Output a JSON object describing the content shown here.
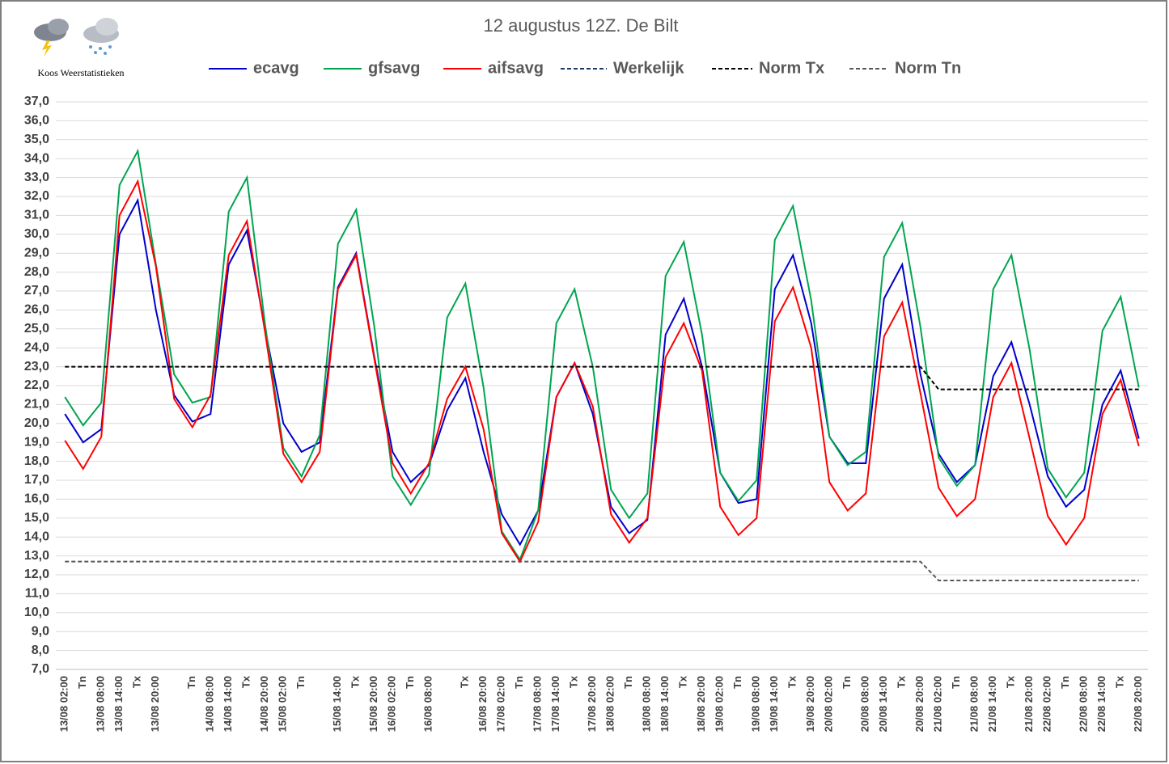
{
  "chart_data": {
    "type": "line",
    "title": "12 augustus 12Z. De Bilt",
    "subtitle": "Koos Weerstatistieken",
    "categories": [
      "13/08 02:00",
      "Tn",
      "13/08 08:00",
      "13/08 14:00",
      "Tx",
      "13/08 20:00",
      null,
      "Tn",
      "14/08 08:00",
      "14/08 14:00",
      "Tx",
      "14/08 20:00",
      "15/08 02:00",
      "Tn",
      null,
      "15/08 14:00",
      "Tx",
      "15/08 20:00",
      "16/08 02:00",
      "Tn",
      "16/08 08:00",
      null,
      "Tx",
      "16/08 20:00",
      "17/08 02:00",
      "Tn",
      "17/08 08:00",
      "17/08 14:00",
      "Tx",
      "17/08 20:00",
      "18/08 02:00",
      "Tn",
      "18/08 08:00",
      "18/08 14:00",
      "Tx",
      "18/08 20:00",
      "19/08 02:00",
      "Tn",
      "19/08 08:00",
      "19/08 14:00",
      "Tx",
      "19/08 20:00",
      "20/08 02:00",
      "Tn",
      "20/08 08:00",
      "20/08 14:00",
      "Tx",
      "20/08 20:00",
      "21/08 02:00",
      "Tn",
      "21/08 08:00",
      "21/08 14:00",
      "Tx",
      "21/08 20:00",
      "22/08 02:00",
      "Tn",
      "22/08 08:00",
      "22/08 14:00",
      "Tx",
      "22/08 20:00"
    ],
    "series": [
      {
        "name": "ecavg",
        "color": "#0000cc",
        "dash": false,
        "values": [
          20.5,
          19.0,
          19.7,
          30.0,
          31.8,
          26.0,
          21.5,
          20.1,
          20.5,
          28.4,
          30.2,
          25.0,
          20.0,
          18.5,
          19.0,
          27.2,
          29.0,
          23.5,
          18.5,
          16.9,
          17.8,
          20.7,
          22.4,
          18.5,
          15.2,
          13.6,
          15.4,
          21.4,
          23.2,
          20.5,
          15.6,
          14.2,
          14.9,
          24.7,
          26.6,
          23.0,
          17.4,
          15.8,
          16.0,
          27.1,
          28.9,
          25.3,
          19.3,
          17.9,
          17.9,
          26.6,
          28.4,
          22.6,
          18.4,
          16.9,
          17.8,
          22.5,
          24.3,
          21.0,
          17.2,
          15.6,
          16.5,
          21.0,
          22.8,
          19.2
        ]
      },
      {
        "name": "gfsavg",
        "color": "#00a550",
        "dash": false,
        "values": [
          21.4,
          19.9,
          21.1,
          32.6,
          34.4,
          28.4,
          22.6,
          21.1,
          21.4,
          31.2,
          33.0,
          25.2,
          18.7,
          17.2,
          19.4,
          29.5,
          31.3,
          25.1,
          17.2,
          15.7,
          17.3,
          25.6,
          27.4,
          21.9,
          14.3,
          12.8,
          15.4,
          25.3,
          27.1,
          23.0,
          16.5,
          15.0,
          16.3,
          27.8,
          29.6,
          24.7,
          17.4,
          15.9,
          17.0,
          29.7,
          31.5,
          26.5,
          19.3,
          17.8,
          18.5,
          28.8,
          30.6,
          25.1,
          18.2,
          16.7,
          17.8,
          27.1,
          28.9,
          23.9,
          17.6,
          16.1,
          17.4,
          24.9,
          26.7,
          21.9
        ]
      },
      {
        "name": "aifsavg",
        "color": "#ff0000",
        "dash": false,
        "values": [
          19.1,
          17.6,
          19.3,
          31.0,
          32.8,
          28.3,
          21.3,
          19.8,
          21.5,
          28.9,
          30.7,
          24.8,
          18.4,
          16.9,
          18.5,
          27.1,
          28.9,
          23.4,
          17.9,
          16.3,
          17.9,
          21.3,
          23.0,
          19.7,
          14.2,
          12.7,
          14.8,
          21.4,
          23.2,
          20.9,
          15.2,
          13.7,
          15.0,
          23.5,
          25.3,
          22.8,
          15.6,
          14.1,
          15.0,
          25.4,
          27.2,
          24.0,
          16.9,
          15.4,
          16.3,
          24.6,
          26.4,
          21.6,
          16.6,
          15.1,
          16.0,
          21.4,
          23.2,
          19.2,
          15.1,
          13.6,
          15.0,
          20.5,
          22.3,
          18.8
        ]
      },
      {
        "name": "Werkelijk",
        "color": "#1f3864",
        "dash": true,
        "values": [
          null,
          null,
          null,
          null,
          null,
          null,
          null,
          null,
          null,
          null,
          null,
          null,
          null,
          null,
          null,
          null,
          null,
          null,
          null,
          null,
          null,
          null,
          null,
          null,
          null,
          null,
          null,
          null,
          null,
          null,
          null,
          null,
          null,
          null,
          null,
          null,
          null,
          null,
          null,
          null,
          null,
          null,
          null,
          null,
          null,
          null,
          null,
          null,
          null,
          null,
          null,
          null,
          null,
          null,
          null,
          null,
          null,
          null,
          null,
          null
        ]
      },
      {
        "name": "Norm Tx",
        "color": "#000000",
        "dash": true,
        "values": [
          23.0,
          23.0,
          23.0,
          23.0,
          23.0,
          23.0,
          23.0,
          23.0,
          23.0,
          23.0,
          23.0,
          23.0,
          23.0,
          23.0,
          23.0,
          23.0,
          23.0,
          23.0,
          23.0,
          23.0,
          23.0,
          23.0,
          23.0,
          23.0,
          23.0,
          23.0,
          23.0,
          23.0,
          23.0,
          23.0,
          23.0,
          23.0,
          23.0,
          23.0,
          23.0,
          23.0,
          23.0,
          23.0,
          23.0,
          23.0,
          23.0,
          23.0,
          23.0,
          23.0,
          23.0,
          23.0,
          23.0,
          23.0,
          21.8,
          21.8,
          21.8,
          21.8,
          21.8,
          21.8,
          21.8,
          21.8,
          21.8,
          21.8,
          21.8,
          21.8
        ]
      },
      {
        "name": "Norm Tn",
        "color": "#595959",
        "dash": true,
        "values": [
          12.7,
          12.7,
          12.7,
          12.7,
          12.7,
          12.7,
          12.7,
          12.7,
          12.7,
          12.7,
          12.7,
          12.7,
          12.7,
          12.7,
          12.7,
          12.7,
          12.7,
          12.7,
          12.7,
          12.7,
          12.7,
          12.7,
          12.7,
          12.7,
          12.7,
          12.7,
          12.7,
          12.7,
          12.7,
          12.7,
          12.7,
          12.7,
          12.7,
          12.7,
          12.7,
          12.7,
          12.7,
          12.7,
          12.7,
          12.7,
          12.7,
          12.7,
          12.7,
          12.7,
          12.7,
          12.7,
          12.7,
          12.7,
          11.7,
          11.7,
          11.7,
          11.7,
          11.7,
          11.7,
          11.7,
          11.7,
          11.7,
          11.7,
          11.7,
          11.7
        ]
      }
    ],
    "ylim": [
      7,
      37
    ],
    "yticks": [
      {
        "value": 7,
        "label": "7,0"
      },
      {
        "value": 8,
        "label": "8,0"
      },
      {
        "value": 9,
        "label": "9,0"
      },
      {
        "value": 10,
        "label": "10,0"
      },
      {
        "value": 11,
        "label": "11,0"
      },
      {
        "value": 12,
        "label": "12,0"
      },
      {
        "value": 13,
        "label": "13,0"
      },
      {
        "value": 14,
        "label": "14,0"
      },
      {
        "value": 15,
        "label": "15,0"
      },
      {
        "value": 16,
        "label": "16,0"
      },
      {
        "value": 17,
        "label": "17,0"
      },
      {
        "value": 18,
        "label": "18,0"
      },
      {
        "value": 19,
        "label": "19,0"
      },
      {
        "value": 20,
        "label": "20,0"
      },
      {
        "value": 21,
        "label": "21,0"
      },
      {
        "value": 22,
        "label": "22,0"
      },
      {
        "value": 23,
        "label": "23,0"
      },
      {
        "value": 24,
        "label": "24,0"
      },
      {
        "value": 25,
        "label": "25,0"
      },
      {
        "value": 26,
        "label": "26,0"
      },
      {
        "value": 27,
        "label": "27,0"
      },
      {
        "value": 28,
        "label": "28,0"
      },
      {
        "value": 29,
        "label": "29,0"
      },
      {
        "value": 30,
        "label": "30,0"
      },
      {
        "value": 31,
        "label": "31,0"
      },
      {
        "value": 32,
        "label": "32,0"
      },
      {
        "value": 33,
        "label": "33,0"
      },
      {
        "value": 34,
        "label": "34,0"
      },
      {
        "value": 35,
        "label": "35,0"
      },
      {
        "value": 36,
        "label": "36,0"
      },
      {
        "value": 37,
        "label": "37,0"
      }
    ],
    "grid": true,
    "legend": "top"
  }
}
